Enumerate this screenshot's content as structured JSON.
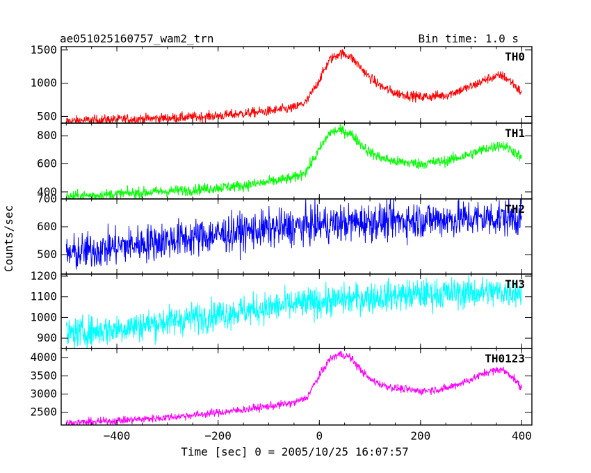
{
  "chart_data": {
    "type": "line",
    "title": "ae051025160757_wam2_trn",
    "subtitle": "Bin time: 1.0 s",
    "xlabel": "Time [sec] 0 = 2005/10/25 16:07:57",
    "ylabel": "Counts/sec",
    "xlim": [
      -510,
      420
    ],
    "x_ticks": [
      -400,
      -200,
      0,
      200,
      400
    ],
    "x_tick_labels": [
      "−400",
      "−200",
      "0",
      "200",
      "400"
    ],
    "grid": false,
    "legend": "none",
    "panels": [
      {
        "name": "TH0",
        "color": "#ff0000",
        "ylim": [
          400,
          1550
        ],
        "y_ticks": [
          500,
          1000,
          1500
        ],
        "y_tick_labels": [
          "500",
          "1000",
          "1500"
        ],
        "noise": 38,
        "x": [
          -500,
          -450,
          -400,
          -350,
          -300,
          -250,
          -200,
          -150,
          -100,
          -50,
          -25,
          0,
          20,
          40,
          60,
          80,
          100,
          125,
          150,
          200,
          250,
          300,
          330,
          360,
          380,
          400
        ],
        "values": [
          430,
          445,
          455,
          465,
          475,
          490,
          510,
          545,
          580,
          630,
          720,
          1050,
          1350,
          1450,
          1410,
          1250,
          1080,
          940,
          850,
          790,
          820,
          950,
          1060,
          1120,
          1020,
          850
        ]
      },
      {
        "name": "TH1",
        "color": "#00ff00",
        "ylim": [
          350,
          890
        ],
        "y_ticks": [
          400,
          600,
          800
        ],
        "y_tick_labels": [
          "400",
          "600",
          "800"
        ],
        "noise": 20,
        "x": [
          -500,
          -450,
          -400,
          -350,
          -300,
          -250,
          -200,
          -150,
          -100,
          -50,
          -25,
          0,
          20,
          40,
          60,
          80,
          100,
          125,
          150,
          200,
          250,
          300,
          330,
          360,
          380,
          400
        ],
        "values": [
          365,
          375,
          385,
          395,
          405,
          415,
          430,
          445,
          470,
          500,
          550,
          700,
          820,
          840,
          820,
          750,
          680,
          640,
          615,
          600,
          620,
          670,
          710,
          735,
          700,
          640
        ]
      },
      {
        "name": "TH2",
        "color": "#0000ff",
        "ylim": [
          430,
          700
        ],
        "y_ticks": [
          500,
          600,
          700
        ],
        "y_tick_labels": [
          "500",
          "600",
          "700"
        ],
        "noise": 34,
        "x": [
          -500,
          -400,
          -300,
          -200,
          -100,
          0,
          100,
          200,
          300,
          400
        ],
        "values": [
          500,
          528,
          552,
          572,
          592,
          608,
          618,
          625,
          630,
          634
        ]
      },
      {
        "name": "TH3",
        "color": "#00ffff",
        "ylim": [
          850,
          1210
        ],
        "y_ticks": [
          900,
          1000,
          1100,
          1200
        ],
        "y_tick_labels": [
          "900",
          "1000",
          "1100",
          "1200"
        ],
        "noise": 38,
        "x": [
          -500,
          -400,
          -300,
          -200,
          -100,
          0,
          100,
          200,
          300,
          400
        ],
        "values": [
          920,
          945,
          980,
          1015,
          1048,
          1075,
          1098,
          1112,
          1120,
          1125
        ]
      },
      {
        "name": "TH0123",
        "color": "#ff00ff",
        "ylim": [
          2150,
          4250
        ],
        "y_ticks": [
          2500,
          3000,
          3500,
          4000
        ],
        "y_tick_labels": [
          "2500",
          "3000",
          "3500",
          "4000"
        ],
        "noise": 55,
        "x": [
          -500,
          -450,
          -400,
          -350,
          -300,
          -250,
          -200,
          -150,
          -100,
          -50,
          -25,
          0,
          20,
          40,
          60,
          80,
          100,
          125,
          150,
          200,
          250,
          300,
          330,
          360,
          380,
          400
        ],
        "values": [
          2200,
          2230,
          2270,
          2310,
          2360,
          2420,
          2490,
          2570,
          2660,
          2760,
          2900,
          3500,
          3950,
          4100,
          4020,
          3700,
          3400,
          3250,
          3160,
          3080,
          3150,
          3400,
          3600,
          3680,
          3500,
          3150
        ]
      }
    ]
  }
}
